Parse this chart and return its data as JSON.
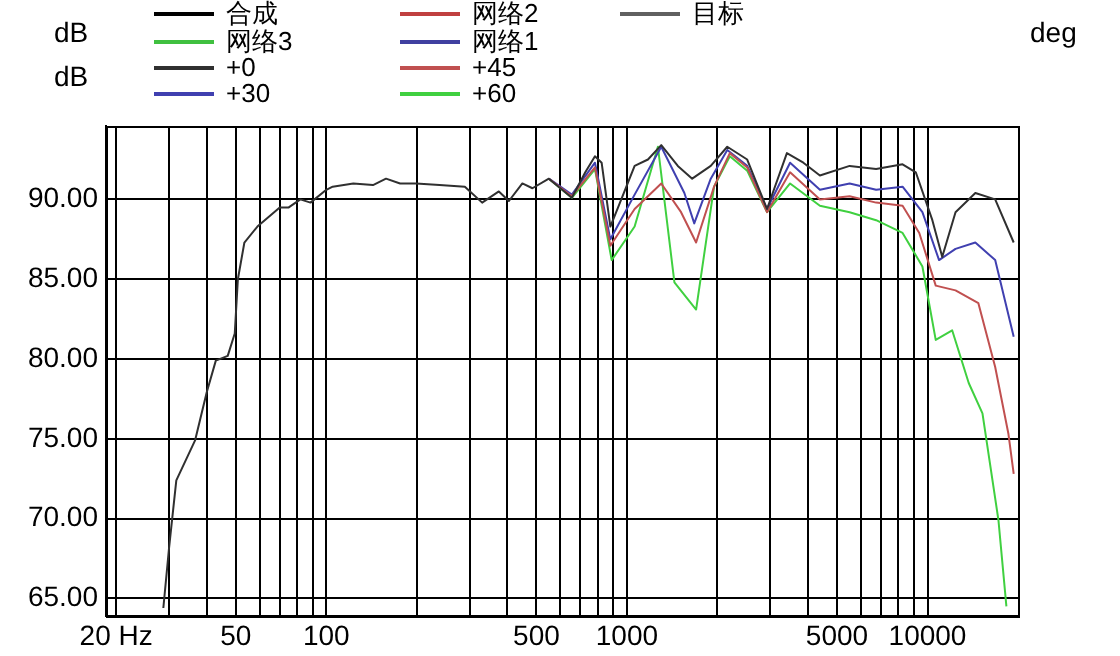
{
  "chart_data": {
    "type": "line",
    "ylabel": "dB",
    "y2label": "deg",
    "annotations": [
      "dB"
    ],
    "log": "x",
    "grid": true,
    "legend": "top",
    "marker": "none",
    "line_style": "solid",
    "xlim": [
      18.5,
      20000
    ],
    "ylim": [
      63.9,
      94.6
    ],
    "xticks": [
      {
        "value": 20,
        "label": "20 Hz"
      },
      {
        "value": 30,
        "label": null
      },
      {
        "value": 40,
        "label": null
      },
      50,
      {
        "value": 60,
        "label": null
      },
      {
        "value": 70,
        "label": null
      },
      {
        "value": 80,
        "label": null
      },
      {
        "value": 90,
        "label": null
      },
      100,
      {
        "value": 200,
        "label": null
      },
      {
        "value": 300,
        "label": null
      },
      {
        "value": 400,
        "label": null
      },
      500,
      {
        "value": 600,
        "label": null
      },
      {
        "value": 700,
        "label": null
      },
      {
        "value": 800,
        "label": null
      },
      {
        "value": 900,
        "label": null
      },
      1000,
      {
        "value": 2000,
        "label": null
      },
      {
        "value": 3000,
        "label": null
      },
      {
        "value": 4000,
        "label": null
      },
      5000,
      {
        "value": 6000,
        "label": null
      },
      {
        "value": 7000,
        "label": null
      },
      {
        "value": 8000,
        "label": null
      },
      {
        "value": 9000,
        "label": null
      },
      10000
    ],
    "yticks": [
      {
        "value": 65,
        "label": "65.00"
      },
      {
        "value": 70,
        "label": "70.00"
      },
      {
        "value": 75,
        "label": "75.00"
      },
      {
        "value": 80,
        "label": "80.00"
      },
      {
        "value": 85,
        "label": "85.00"
      },
      {
        "value": 90,
        "label": "90.00"
      }
    ],
    "series": [
      {
        "name": "合成",
        "color": "#000000"
      },
      {
        "name": "网络2",
        "color": "#c04040"
      },
      {
        "name": "目标",
        "color": "#606060"
      },
      {
        "name": "网络3",
        "color": "#40c040"
      },
      {
        "name": "网络1",
        "color": "#4040a0"
      },
      {
        "name": "+0",
        "color": "#303030",
        "x": [
          28.7,
          30,
          31.7,
          36.6,
          40,
          42.9,
          47,
          49.6,
          50.8,
          53.4,
          59,
          70,
          75,
          82,
          88.6,
          100,
          105,
          123,
          143,
          158,
          176,
          199,
          238,
          289,
          330,
          375,
          405,
          449,
          485,
          550,
          656,
          727,
          783,
          824,
          881,
          939,
          1061,
          1175,
          1301,
          1477,
          1649,
          1901,
          2157,
          2513,
          2925,
          3406,
          3864,
          4386,
          5508,
          6746,
          8261,
          9142,
          10378,
          11194,
          12393,
          14424,
          16793,
          19352
        ],
        "values": [
          64.4,
          68.2,
          72.4,
          74.9,
          77.9,
          79.9,
          80.2,
          81.6,
          85,
          87.3,
          88.3,
          89.5,
          89.5,
          90,
          89.8,
          90.6,
          90.8,
          91,
          90.9,
          91.3,
          91,
          91,
          90.9,
          90.8,
          89.8,
          90.5,
          89.9,
          91,
          90.7,
          91.3,
          90.1,
          91.7,
          92.7,
          92.3,
          88.3,
          89.6,
          92.1,
          92.5,
          93.4,
          92.1,
          91.3,
          92.1,
          93.3,
          92.5,
          89.4,
          92.9,
          92.3,
          91.5,
          92.1,
          91.9,
          92.2,
          91.7,
          88.7,
          86.4,
          89.2,
          90.4,
          90,
          87.3
        ]
      },
      {
        "name": "+45",
        "color": "#c05050",
        "x": [
          550,
          656,
          783,
          881,
          1061,
          1301,
          1514,
          1699,
          1950,
          2200,
          2513,
          2925,
          3490,
          4386,
          5508,
          6746,
          8261,
          9389,
          10650,
          12393,
          14765,
          16793,
          18589,
          19352
        ],
        "values": [
          91.3,
          90.2,
          92,
          87.1,
          89.4,
          91,
          89.2,
          87.3,
          90.8,
          92.9,
          92,
          89.2,
          91.7,
          90,
          90.2,
          89.8,
          89.6,
          87.9,
          84.6,
          84.3,
          83.5,
          79.5,
          75.3,
          72.8
        ]
      },
      {
        "name": "+30",
        "color": "#4040b0",
        "x": [
          550,
          656,
          783,
          881,
          1061,
          1301,
          1553,
          1675,
          1901,
          2157,
          2513,
          2925,
          3490,
          4386,
          5508,
          6746,
          8261,
          9617,
          10925,
          12393,
          14424,
          16793,
          19352
        ],
        "values": [
          91.3,
          90.3,
          92.3,
          87.5,
          90.3,
          93.3,
          90.4,
          88.5,
          91.3,
          93.1,
          92.1,
          89.4,
          92.3,
          90.6,
          91,
          90.6,
          90.8,
          89.2,
          86.2,
          86.9,
          87.3,
          86.2,
          81.4
        ]
      },
      {
        "name": "+60",
        "color": "#40d040",
        "x": [
          550,
          656,
          783,
          890,
          1061,
          1268,
          1439,
          1699,
          1950,
          2200,
          2513,
          2925,
          3490,
          4386,
          5508,
          6746,
          8261,
          9617,
          10650,
          12078,
          13712,
          15234,
          17219,
          18300
        ],
        "values": [
          91.3,
          90.1,
          91.9,
          86.2,
          88.3,
          93.3,
          84.8,
          83.1,
          90.8,
          92.7,
          91.8,
          89.2,
          91,
          89.6,
          89.2,
          88.7,
          87.9,
          85.8,
          81.2,
          81.8,
          78.5,
          76.6,
          69.9,
          64.5
        ]
      }
    ]
  }
}
